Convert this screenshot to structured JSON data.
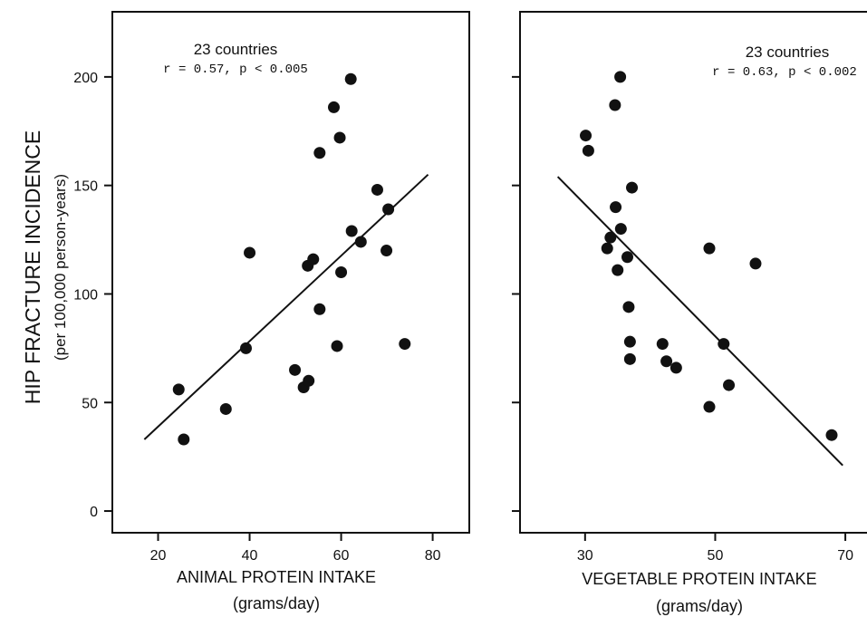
{
  "ylabel": {
    "main": "HIP FRACTURE INCIDENCE",
    "sub": "(per 100,000 person-years)"
  },
  "chart_data": [
    {
      "type": "scatter",
      "annotation": {
        "main": "23 countries",
        "stats": "r = 0.57, p < 0.005"
      },
      "xlabel": {
        "main": "ANIMAL PROTEIN INTAKE",
        "sub": "(grams/day)"
      },
      "xlim": [
        10,
        88
      ],
      "ylim": [
        -10,
        230
      ],
      "x_ticks": [
        20,
        40,
        60,
        80
      ],
      "y_ticks": [
        0,
        50,
        100,
        150,
        200
      ],
      "points": [
        {
          "x": 24.5,
          "y": 56
        },
        {
          "x": 25.6,
          "y": 33
        },
        {
          "x": 34.8,
          "y": 47
        },
        {
          "x": 39.2,
          "y": 75
        },
        {
          "x": 40.0,
          "y": 119
        },
        {
          "x": 49.9,
          "y": 65
        },
        {
          "x": 51.8,
          "y": 57
        },
        {
          "x": 52.9,
          "y": 60
        },
        {
          "x": 52.7,
          "y": 113
        },
        {
          "x": 53.9,
          "y": 116
        },
        {
          "x": 55.3,
          "y": 93
        },
        {
          "x": 55.3,
          "y": 165
        },
        {
          "x": 58.4,
          "y": 186
        },
        {
          "x": 59.1,
          "y": 76
        },
        {
          "x": 59.7,
          "y": 172
        },
        {
          "x": 60.0,
          "y": 110
        },
        {
          "x": 62.1,
          "y": 199
        },
        {
          "x": 62.3,
          "y": 129
        },
        {
          "x": 64.3,
          "y": 124
        },
        {
          "x": 67.9,
          "y": 148
        },
        {
          "x": 69.9,
          "y": 120
        },
        {
          "x": 70.3,
          "y": 139
        },
        {
          "x": 73.9,
          "y": 77
        }
      ],
      "fit_line": [
        {
          "x": 17,
          "y": 33
        },
        {
          "x": 79,
          "y": 155
        }
      ]
    },
    {
      "type": "scatter",
      "annotation": {
        "main": "23 countries",
        "stats": "r = 0.63, p < 0.002"
      },
      "xlabel": {
        "main": "VEGETABLE PROTEIN INTAKE",
        "sub": "(grams/day)"
      },
      "xlim": [
        20,
        75
      ],
      "ylim": [
        -10,
        230
      ],
      "x_ticks": [
        30,
        50,
        70
      ],
      "y_ticks": [
        0,
        50,
        100,
        150,
        200
      ],
      "points": [
        {
          "x": 30.1,
          "y": 173
        },
        {
          "x": 30.5,
          "y": 166
        },
        {
          "x": 35.4,
          "y": 200
        },
        {
          "x": 34.6,
          "y": 187
        },
        {
          "x": 37.2,
          "y": 149
        },
        {
          "x": 34.7,
          "y": 140
        },
        {
          "x": 35.5,
          "y": 130
        },
        {
          "x": 33.9,
          "y": 126
        },
        {
          "x": 33.4,
          "y": 121
        },
        {
          "x": 36.5,
          "y": 117
        },
        {
          "x": 35.0,
          "y": 111
        },
        {
          "x": 36.7,
          "y": 94
        },
        {
          "x": 36.9,
          "y": 78
        },
        {
          "x": 36.9,
          "y": 70
        },
        {
          "x": 41.9,
          "y": 77
        },
        {
          "x": 42.5,
          "y": 69
        },
        {
          "x": 44.0,
          "y": 66
        },
        {
          "x": 49.1,
          "y": 121
        },
        {
          "x": 49.1,
          "y": 48
        },
        {
          "x": 51.3,
          "y": 77
        },
        {
          "x": 52.1,
          "y": 58
        },
        {
          "x": 56.2,
          "y": 114
        },
        {
          "x": 67.9,
          "y": 35
        }
      ],
      "fit_line": [
        {
          "x": 25.8,
          "y": 154
        },
        {
          "x": 69.6,
          "y": 21
        }
      ]
    }
  ]
}
